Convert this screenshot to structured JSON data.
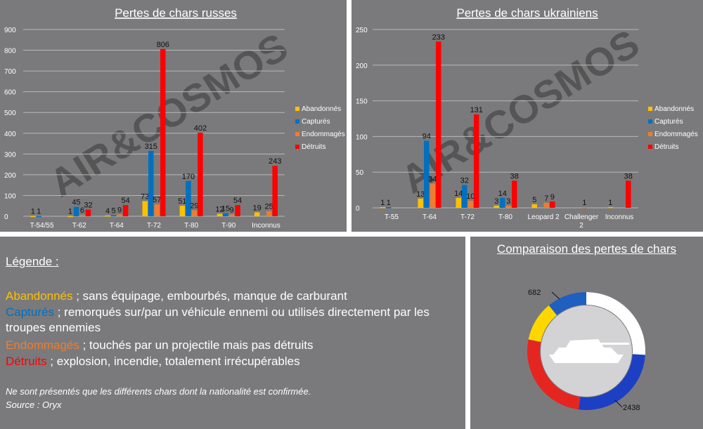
{
  "legend_panel": {
    "title": "Légende :",
    "entries": [
      {
        "term": "Abandonnés",
        "desc": " ; sans équipage, embourbés, manque de carburant"
      },
      {
        "term": "Capturés",
        "desc": " ; remorqués sur/par un véhicule ennemi ou utilisés directement par les troupes ennemies"
      },
      {
        "term": "Endommagés",
        "desc": " ; touchés par un projectile mais pas détruits"
      },
      {
        "term": "Détruits",
        "desc": " ; explosion, incendie, totalement irrécupérables"
      }
    ],
    "note": "Ne sont présentés que les différents chars dont la nationalité est confirmée.",
    "source": "Source : Oryx"
  },
  "watermark": "AIR&COSMOS",
  "colors": {
    "Abandonnés": "#ffc000",
    "Capturés": "#0070c0",
    "Endommagés": "#ed7d31",
    "Détruits": "#ff0000"
  },
  "chart_data": [
    {
      "type": "bar",
      "title": "Pertes de chars russes",
      "categories": [
        "T-54/55",
        "T-62",
        "T-64",
        "T-72",
        "T-80",
        "T-90",
        "Inconnus"
      ],
      "series": [
        {
          "name": "Abandonnés",
          "values": [
            1,
            1,
            4,
            73,
            51,
            12,
            19
          ]
        },
        {
          "name": "Capturés",
          "values": [
            1,
            45,
            5,
            315,
            170,
            15,
            0
          ]
        },
        {
          "name": "Endommagés",
          "values": [
            0,
            6,
            9,
            57,
            29,
            9,
            25
          ]
        },
        {
          "name": "Détruits",
          "values": [
            0,
            32,
            54,
            806,
            402,
            54,
            243
          ]
        }
      ],
      "ylim": [
        0,
        900
      ],
      "yticks": [
        0,
        100,
        200,
        300,
        400,
        500,
        600,
        700,
        800,
        900
      ],
      "legend": "right",
      "grid": true
    },
    {
      "type": "bar",
      "title": "Pertes de chars ukrainiens",
      "categories": [
        "T-55",
        "T-64",
        "T-72",
        "T-80",
        "Leopard 2",
        "Challenger 2",
        "Inconnus"
      ],
      "series": [
        {
          "name": "Abandonnés",
          "values": [
            1,
            13,
            14,
            3,
            5,
            0,
            1
          ]
        },
        {
          "name": "Capturés",
          "values": [
            1,
            94,
            32,
            14,
            0,
            0,
            0
          ]
        },
        {
          "name": "Endommagés",
          "values": [
            0,
            34,
            10,
            3,
            7,
            1,
            0
          ]
        },
        {
          "name": "Détruits",
          "values": [
            0,
            233,
            131,
            38,
            9,
            0,
            38
          ]
        }
      ],
      "ylim": [
        0,
        250
      ],
      "yticks": [
        0,
        50,
        100,
        150,
        200,
        250
      ],
      "legend": "right",
      "grid": true
    },
    {
      "type": "pie",
      "title": "Comparaison des pertes de chars",
      "slices": [
        {
          "label": "682",
          "value": 682
        },
        {
          "label": "2438",
          "value": 2438
        }
      ]
    }
  ]
}
